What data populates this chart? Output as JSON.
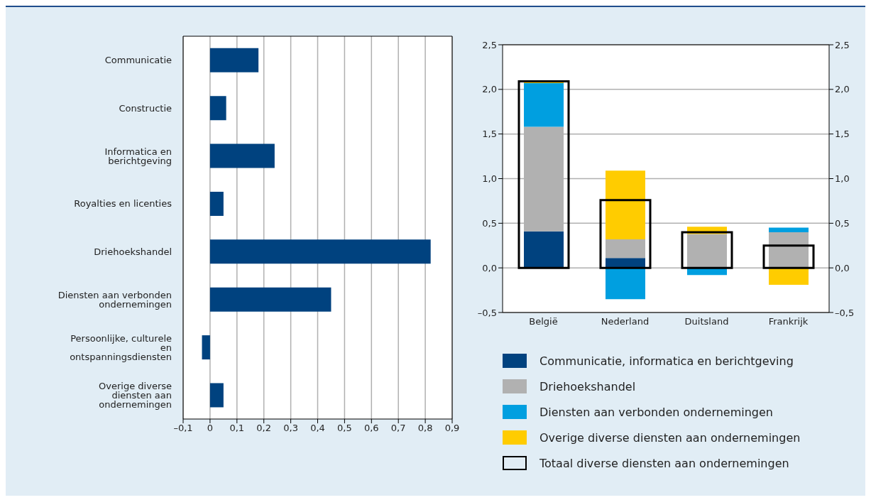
{
  "chart_data": [
    {
      "type": "bar",
      "orientation": "horizontal",
      "categories": [
        "Communicatie",
        "Constructie",
        "Informatica en berichtgeving",
        "Royalties en licenties",
        "Driehoekshandel",
        "Diensten aan verbonden ondernemingen",
        "Persoonlijke, culturele en ontspanningsdiensten",
        "Overige diverse diensten aan ondernemingen"
      ],
      "values": [
        0.18,
        0.06,
        0.24,
        0.05,
        0.82,
        0.45,
        -0.03,
        0.05
      ],
      "color": "#00427f",
      "xlim": [
        -0.1,
        0.9
      ],
      "xticks": [
        {
          "value": -0.1,
          "label": "–0,1"
        },
        0,
        {
          "value": 0.1,
          "label": "0,1"
        },
        {
          "value": 0.2,
          "label": "0,2"
        },
        {
          "value": 0.3,
          "label": "0,3"
        },
        {
          "value": 0.4,
          "label": "0,4"
        },
        {
          "value": 0.5,
          "label": "0,5"
        },
        {
          "value": 0.6,
          "label": "0,6"
        },
        {
          "value": 0.7,
          "label": "0,7"
        },
        {
          "value": 0.8,
          "label": "0,8"
        },
        {
          "value": 0.9,
          "label": "0,9"
        }
      ],
      "grid": "x"
    },
    {
      "type": "bar",
      "stacked": true,
      "categories": [
        "België",
        "Nederland",
        "Duitsland",
        "Frankrijk"
      ],
      "series": [
        {
          "name": "Communicatie, informatica en berichtgeving",
          "color": "#00427f",
          "values": [
            0.41,
            0.11,
            0,
            0
          ]
        },
        {
          "name": "Driehoekshandel",
          "color": "#b1b1b1",
          "values": [
            1.17,
            0.21,
            0.38,
            0.4
          ]
        },
        {
          "name": "Diensten aan verbonden ondernemingen",
          "color": "#009fe0",
          "values": [
            0.49,
            -0.35,
            -0.08,
            0.05
          ]
        },
        {
          "name": "Overige diverse diensten aan ondernemingen",
          "color": "#ffcc00",
          "values": [
            0.01,
            0.77,
            0.08,
            -0.19
          ]
        }
      ],
      "ylim": [
        -0.5,
        2.5
      ],
      "yticks": [
        {
          "value": -0.5,
          "label": "–0,5"
        },
        {
          "value": 0,
          "label": "0,0"
        },
        {
          "value": 0.5,
          "label": "0,5"
        },
        {
          "value": 1,
          "label": "1,0"
        },
        {
          "value": 1.5,
          "label": "1,5"
        },
        {
          "value": 2,
          "label": "2,0"
        },
        {
          "value": 2.5,
          "label": "2,5"
        }
      ],
      "y2lim": [
        -0.5,
        2.5
      ],
      "y2ticks": [
        {
          "value": -0.5,
          "label": "–0,5"
        },
        {
          "value": 0,
          "label": "0,0"
        },
        {
          "value": 0.5,
          "label": "0,5"
        },
        {
          "value": 1,
          "label": "1,0"
        },
        {
          "value": 1.5,
          "label": "1,5"
        },
        {
          "value": 2,
          "label": "2,0"
        },
        {
          "value": 2.5,
          "label": "2,5"
        }
      ],
      "grid": "y",
      "legend": "bottom"
    },
    {
      "type": "bar",
      "categories": [
        null,
        null,
        null,
        null
      ],
      "series": [
        {
          "name": "Totaal diverse diensten aan ondernemingen",
          "color": "#000000",
          "values": [
            2.09,
            0.76,
            0.4,
            0.25
          ]
        }
      ],
      "ylim": [
        -0.5,
        2.5
      ],
      "tick_labels": false,
      "legend": "bottom"
    }
  ]
}
